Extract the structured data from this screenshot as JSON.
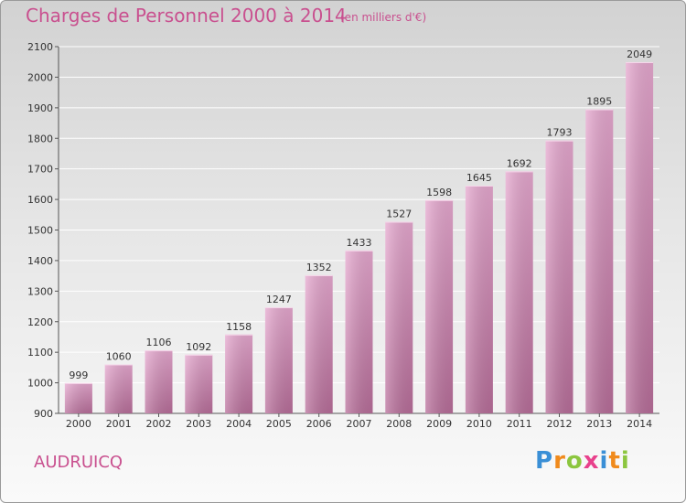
{
  "header": {
    "title": "Charges de Personnel 2000 à 2014",
    "subtitle": "(en milliers d'€)"
  },
  "footer": {
    "commune": "AUDRUICQ",
    "logo_letters": [
      "P",
      "r",
      "o",
      "x",
      "i",
      "t",
      "i"
    ]
  },
  "colors": {
    "accent": "#c9508f",
    "bar_top": "#e6a8cf",
    "bar_bottom": "#b86e9a",
    "logo": [
      "#3a8fd6",
      "#f08a1c",
      "#8cc63f",
      "#e8418c",
      "#3a8fd6",
      "#f08a1c",
      "#8cc63f"
    ]
  },
  "chart_data": {
    "type": "bar",
    "title": "Charges de Personnel 2000 à 2014",
    "subtitle": "(en milliers d'€)",
    "categories": [
      "2000",
      "2001",
      "2002",
      "2003",
      "2004",
      "2005",
      "2006",
      "2007",
      "2008",
      "2009",
      "2010",
      "2011",
      "2012",
      "2013",
      "2014"
    ],
    "values": [
      999,
      1060,
      1106,
      1092,
      1158,
      1247,
      1352,
      1433,
      1527,
      1598,
      1645,
      1692,
      1793,
      1895,
      2049
    ],
    "ylim": [
      900,
      2100
    ],
    "yticks": [
      900,
      1000,
      1100,
      1200,
      1300,
      1400,
      1500,
      1600,
      1700,
      1800,
      1900,
      2000,
      2100
    ],
    "grid": true,
    "xlabel": "",
    "ylabel": ""
  }
}
